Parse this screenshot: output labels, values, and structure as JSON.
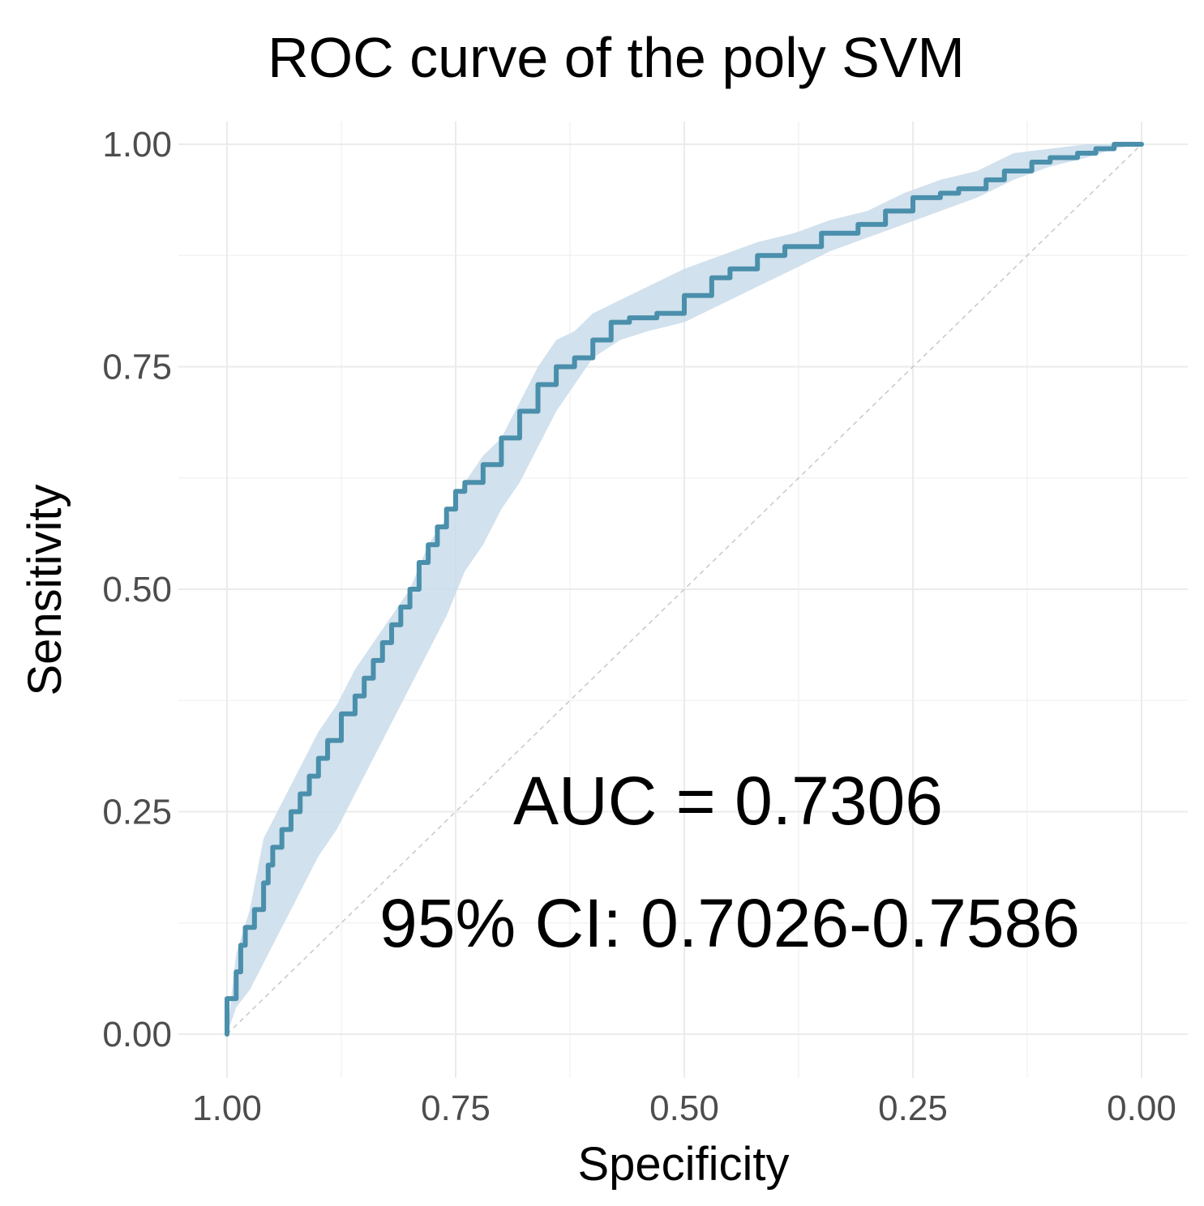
{
  "chart_data": {
    "type": "line",
    "title": "ROC curve of the poly SVM",
    "xlabel": "Specificity",
    "ylabel": "Sensitivity",
    "x_reversed": true,
    "xlim": [
      1.0,
      0.0
    ],
    "ylim": [
      0.0,
      1.0
    ],
    "x_ticks": [
      "1.00",
      "0.75",
      "0.50",
      "0.25",
      "0.00"
    ],
    "x_tick_values": [
      1.0,
      0.75,
      0.5,
      0.25,
      0.0
    ],
    "y_ticks": [
      "0.00",
      "0.25",
      "0.50",
      "0.75",
      "1.00"
    ],
    "y_tick_values": [
      0.0,
      0.25,
      0.5,
      0.75,
      1.0
    ],
    "grid": true,
    "colors": {
      "line": "#4a8fab",
      "band": "#c9dcea",
      "diagonal": "#c8c8c8"
    },
    "series": [
      {
        "name": "ROC",
        "specificity": [
          1.0,
          1.0,
          0.99,
          0.985,
          0.98,
          0.97,
          0.96,
          0.955,
          0.95,
          0.94,
          0.93,
          0.92,
          0.91,
          0.9,
          0.89,
          0.875,
          0.86,
          0.85,
          0.84,
          0.83,
          0.82,
          0.81,
          0.8,
          0.79,
          0.78,
          0.77,
          0.76,
          0.75,
          0.74,
          0.72,
          0.7,
          0.68,
          0.66,
          0.64,
          0.62,
          0.6,
          0.58,
          0.56,
          0.53,
          0.5,
          0.47,
          0.45,
          0.42,
          0.39,
          0.35,
          0.31,
          0.28,
          0.25,
          0.22,
          0.2,
          0.17,
          0.15,
          0.12,
          0.1,
          0.07,
          0.05,
          0.03,
          0.0
        ],
        "sensitivity": [
          0.0,
          0.04,
          0.07,
          0.1,
          0.12,
          0.14,
          0.17,
          0.19,
          0.21,
          0.23,
          0.25,
          0.27,
          0.29,
          0.31,
          0.33,
          0.36,
          0.38,
          0.4,
          0.42,
          0.44,
          0.46,
          0.48,
          0.5,
          0.53,
          0.55,
          0.57,
          0.59,
          0.61,
          0.62,
          0.64,
          0.67,
          0.7,
          0.73,
          0.75,
          0.76,
          0.78,
          0.8,
          0.805,
          0.81,
          0.83,
          0.85,
          0.86,
          0.875,
          0.885,
          0.9,
          0.91,
          0.925,
          0.94,
          0.945,
          0.95,
          0.96,
          0.97,
          0.98,
          0.985,
          0.99,
          0.995,
          1.0,
          1.0
        ]
      }
    ],
    "ci_band": {
      "specificity": [
        1.0,
        0.99,
        0.975,
        0.96,
        0.94,
        0.92,
        0.9,
        0.88,
        0.86,
        0.84,
        0.82,
        0.8,
        0.78,
        0.76,
        0.74,
        0.72,
        0.7,
        0.68,
        0.66,
        0.64,
        0.62,
        0.6,
        0.57,
        0.54,
        0.5,
        0.46,
        0.42,
        0.38,
        0.34,
        0.3,
        0.26,
        0.22,
        0.18,
        0.14,
        0.1,
        0.06,
        0.03,
        0.0
      ],
      "upper": [
        0.0,
        0.09,
        0.14,
        0.22,
        0.26,
        0.3,
        0.34,
        0.37,
        0.41,
        0.44,
        0.47,
        0.5,
        0.55,
        0.58,
        0.62,
        0.65,
        0.67,
        0.71,
        0.75,
        0.78,
        0.79,
        0.81,
        0.825,
        0.84,
        0.86,
        0.875,
        0.89,
        0.9,
        0.915,
        0.925,
        0.945,
        0.96,
        0.97,
        0.99,
        0.995,
        1.0,
        1.0,
        1.0
      ],
      "lower": [
        0.0,
        0.03,
        0.05,
        0.08,
        0.12,
        0.16,
        0.2,
        0.23,
        0.27,
        0.31,
        0.35,
        0.39,
        0.43,
        0.47,
        0.52,
        0.55,
        0.59,
        0.62,
        0.66,
        0.7,
        0.73,
        0.76,
        0.78,
        0.79,
        0.8,
        0.82,
        0.84,
        0.86,
        0.88,
        0.895,
        0.91,
        0.925,
        0.94,
        0.96,
        0.975,
        0.985,
        0.995,
        1.0
      ]
    },
    "diagonal": {
      "from": [
        1.0,
        0.0
      ],
      "to": [
        0.0,
        1.0
      ]
    },
    "annotations": {
      "auc": "AUC = 0.7306",
      "ci": "95% CI: 0.7026-0.7586"
    }
  }
}
